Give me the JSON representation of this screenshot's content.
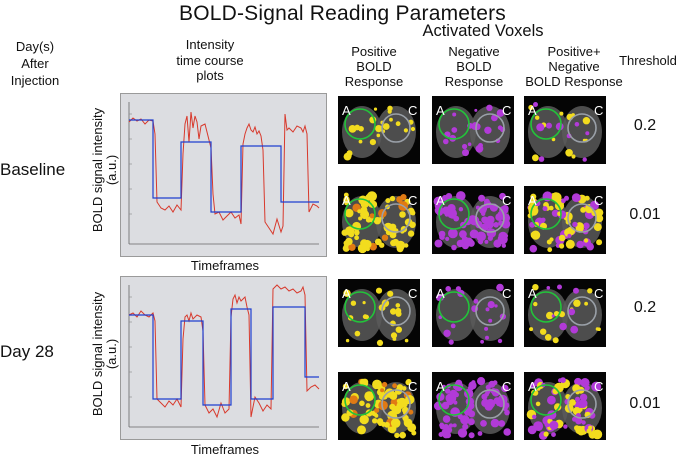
{
  "title": "BOLD-Signal Reading Parameters",
  "activated_voxels": "Activated Voxels",
  "headers": {
    "days": "Day(s)\nAfter\nInjection",
    "intensity": "Intensity\ntime course\nplots",
    "positive": "Positive\nBOLD\nResponse",
    "negative": "Negative\nBOLD\nResponse",
    "both": "Positive+\nNegative\nBOLD Response",
    "threshold": "Threshold"
  },
  "rows": [
    {
      "label": "Baseline",
      "thresholds": [
        "0.2",
        "0.01"
      ]
    },
    {
      "label": "Day 28",
      "thresholds": [
        "0.2",
        "0.01"
      ]
    }
  ],
  "plot": {
    "ylabel": "BOLD signal intensity\n(a.u.)",
    "xlabel": "Timeframes"
  },
  "brain_markers": {
    "left": "A",
    "right": "C"
  },
  "colors": {
    "signal": "#d8392c",
    "block": "#1f3fd0",
    "plot_bg": "#dcdde1",
    "positive": "#f2dc1e",
    "negative": "#b23ad8",
    "roi": "#22c43a"
  }
}
